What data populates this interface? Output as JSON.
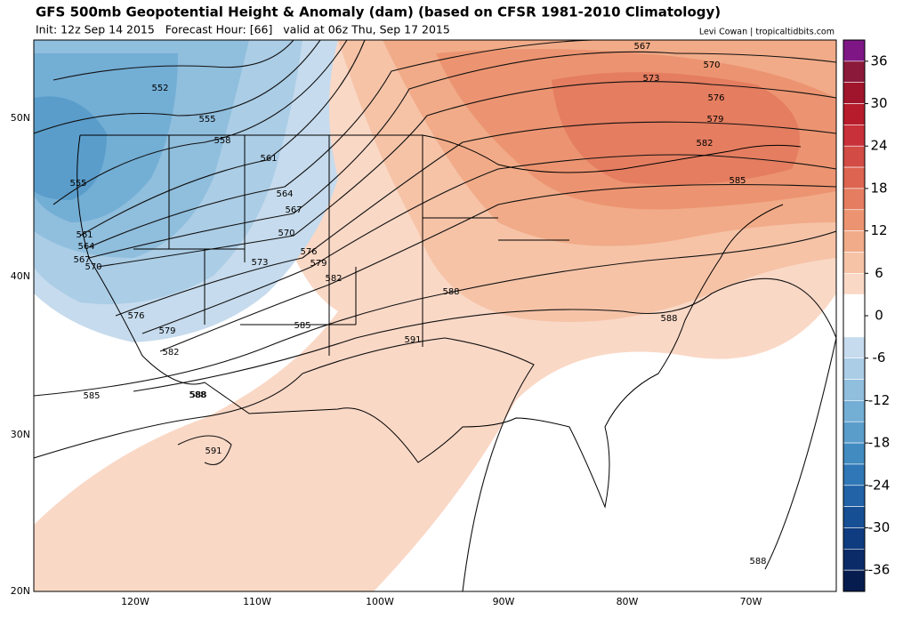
{
  "header": {
    "title": "GFS 500mb Geopotential Height & Anomaly (dam) (based on CFSR 1981-2010 Climatology)",
    "subtitle": "Init: 12z Sep 14 2015   Forecast Hour: [66]   valid at 06z Thu, Sep 17 2015",
    "credit": "Levi Cowan | tropicaltidbits.com"
  },
  "map": {
    "latitude_labels": [
      "50N",
      "40N",
      "30N",
      "20N"
    ],
    "longitude_labels": [
      "120W",
      "110W",
      "100W",
      "90W",
      "80W",
      "70W"
    ],
    "contour_labels": [
      "552",
      "555",
      "558",
      "561",
      "564",
      "567",
      "570",
      "573",
      "576",
      "579",
      "582",
      "585",
      "588",
      "591",
      "555",
      "561",
      "564",
      "567",
      "570",
      "576",
      "579",
      "582",
      "585",
      "588",
      "591",
      "567",
      "570",
      "573",
      "576",
      "579",
      "582",
      "585",
      "588",
      "588",
      "588"
    ]
  },
  "colorbar": {
    "lim": [
      -39,
      39
    ],
    "ticks": [
      36,
      30,
      24,
      18,
      12,
      6,
      0,
      -6,
      -12,
      -18,
      -24,
      -30,
      -36
    ],
    "colors": [
      "#7e1785",
      "#8b1a3a",
      "#a0152b",
      "#b71c2c",
      "#c8303a",
      "#d24b45",
      "#dd6450",
      "#e57d60",
      "#ec9471",
      "#f1ab88",
      "#f6c3a7",
      "#fad8c6",
      "#ffffff",
      "#ffffff",
      "#c6dbed",
      "#abcde6",
      "#90bedd",
      "#73aed5",
      "#5a9dcb",
      "#418bc1",
      "#2f77b6",
      "#2163a6",
      "#174f95",
      "#0f3c80",
      "#0a2b68",
      "#071c4e"
    ]
  }
}
